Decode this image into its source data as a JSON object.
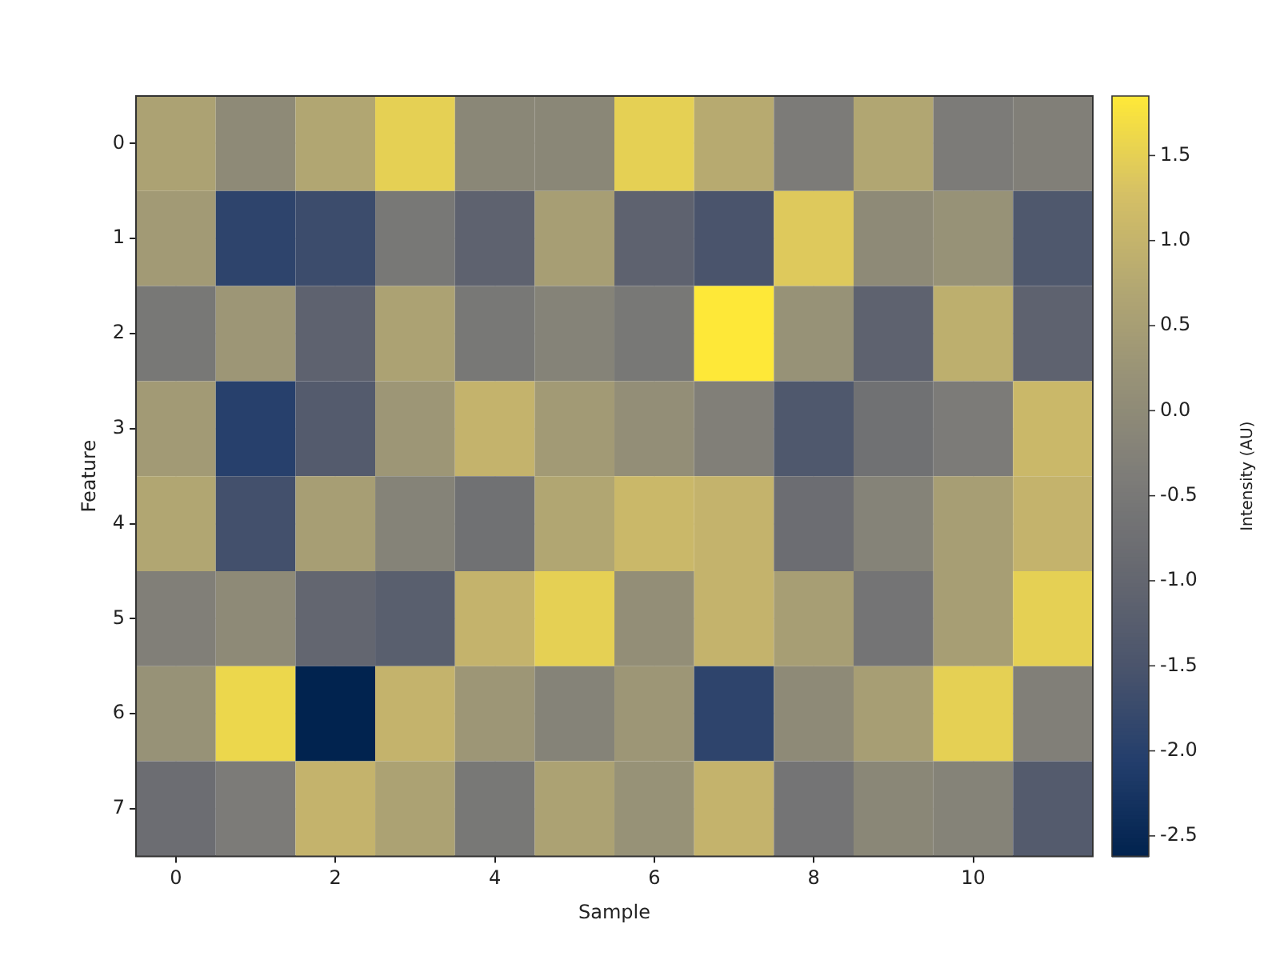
{
  "chart_data": {
    "type": "heatmap",
    "xlabel": "Sample",
    "ylabel": "Feature",
    "clabel": "Intensity (AU)",
    "categories": [
      "0",
      null,
      "2",
      null,
      "4",
      null,
      "6",
      null,
      "8",
      null,
      "10",
      null
    ],
    "y_categories": [
      "0",
      "1",
      "2",
      "3",
      "4",
      "5",
      "6",
      "7"
    ],
    "cells": [
      [
        0.6,
        0.0,
        0.7,
        1.5,
        -0.1,
        -0.1,
        1.5,
        0.8,
        -0.4,
        0.7,
        -0.4,
        -0.3
      ],
      [
        0.4,
        -1.9,
        -1.7,
        -0.5,
        -1.1,
        0.5,
        -1.1,
        -1.5,
        1.4,
        0.0,
        0.2,
        -1.4
      ],
      [
        -0.5,
        0.3,
        -1.1,
        0.6,
        -0.5,
        -0.2,
        -0.5,
        1.85,
        0.2,
        -1.1,
        0.9,
        -1.1
      ],
      [
        0.4,
        -2.0,
        -1.3,
        0.3,
        1.0,
        0.4,
        0.1,
        -0.3,
        -1.4,
        -0.7,
        -0.4,
        1.1
      ],
      [
        0.7,
        -1.6,
        0.5,
        -0.2,
        -0.7,
        0.7,
        1.1,
        1.0,
        -0.8,
        -0.2,
        0.5,
        1.0
      ],
      [
        -0.3,
        0.0,
        -1.0,
        -1.2,
        1.0,
        1.5,
        0.1,
        1.0,
        0.5,
        -0.6,
        0.5,
        1.5
      ],
      [
        0.2,
        1.6,
        -2.6,
        1.0,
        0.3,
        -0.2,
        0.3,
        -1.9,
        0.0,
        0.5,
        1.5,
        -0.3
      ],
      [
        -0.8,
        -0.4,
        1.0,
        0.6,
        -0.5,
        0.6,
        0.2,
        1.0,
        -0.6,
        -0.1,
        -0.2,
        -1.3
      ]
    ],
    "clim": [
      -2.62,
      1.85
    ],
    "cticks": [
      {
        "value": -2.5,
        "label": "-2.5"
      },
      {
        "value": -2.0,
        "label": "-2.0"
      },
      {
        "value": -1.5,
        "label": "-1.5"
      },
      {
        "value": -1.0,
        "label": "-1.0"
      },
      {
        "value": -0.5,
        "label": "-0.5"
      },
      {
        "value": 0.0,
        "label": "0.0"
      },
      {
        "value": 0.5,
        "label": "0.5"
      },
      {
        "value": 1.0,
        "label": "1.0"
      },
      {
        "value": 1.5,
        "label": "1.5"
      }
    ],
    "grid": true
  }
}
